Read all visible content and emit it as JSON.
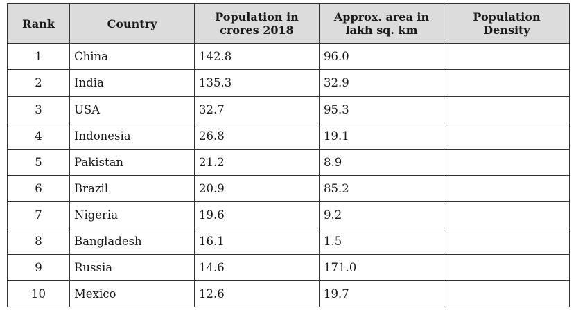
{
  "table": {
    "headers": {
      "rank": "Rank",
      "country": "Country",
      "population_line1": "Population in",
      "population_line2": "crores 2018",
      "area_line1": "Approx. area in",
      "area_line2": "lakh sq. km",
      "density_line1": "Population",
      "density_line2": "Density"
    },
    "rows": [
      {
        "rank": "1",
        "country": "China",
        "population": "142.8",
        "area": "96.0",
        "density": ""
      },
      {
        "rank": "2",
        "country": "India",
        "population": "135.3",
        "area": "32.9",
        "density": ""
      },
      {
        "rank": "3",
        "country": "USA",
        "population": "32.7",
        "area": "95.3",
        "density": ""
      },
      {
        "rank": "4",
        "country": "Indonesia",
        "population": "26.8",
        "area": "19.1",
        "density": ""
      },
      {
        "rank": "5",
        "country": "Pakistan",
        "population": "21.2",
        "area": "8.9",
        "density": ""
      },
      {
        "rank": "6",
        "country": "Brazil",
        "population": "20.9",
        "area": "85.2",
        "density": ""
      },
      {
        "rank": "7",
        "country": "Nigeria",
        "population": "19.6",
        "area": "9.2",
        "density": ""
      },
      {
        "rank": "8",
        "country": "Bangladesh",
        "population": "16.1",
        "area": "1.5",
        "density": ""
      },
      {
        "rank": "9",
        "country": "Russia",
        "population": "14.6",
        "area": "171.0",
        "density": ""
      },
      {
        "rank": "10",
        "country": "Mexico",
        "population": "12.6",
        "area": "19.7",
        "density": ""
      }
    ]
  },
  "colors": {
    "header_background": "#dcdcdc",
    "border": "#333333",
    "watermark_blue": "#2b3e8f",
    "watermark_red": "#b23a3a"
  }
}
